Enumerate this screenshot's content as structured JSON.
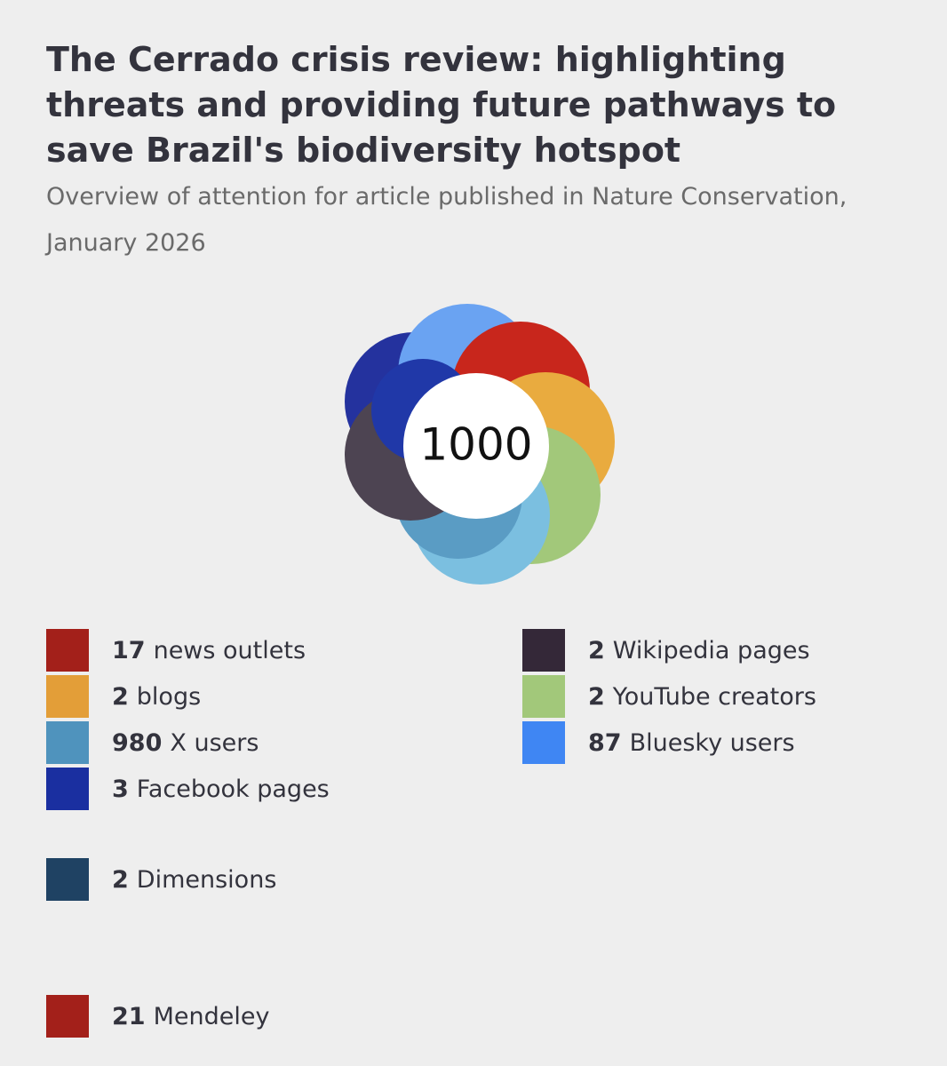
{
  "header": {
    "title": "The Cerrado crisis review: highlighting threats and providing future pathways to save Brazil's biodiversity hotspot",
    "subtitle": "Overview of attention for article published in Nature Conservation, January 2026"
  },
  "score": "1000",
  "columns": [
    [
      {
        "count": 17,
        "label": "news outlets",
        "color": "#a3201a"
      },
      {
        "count": 2,
        "label": "blogs",
        "color": "#e39e38"
      },
      {
        "count": 980,
        "label": "X users",
        "color": "#4f93bd"
      },
      {
        "count": 3,
        "label": "Facebook pages",
        "color": "#1a2fa0"
      }
    ],
    [
      {
        "count": 2,
        "label": "Wikipedia pages",
        "color": "#342838"
      },
      {
        "count": 2,
        "label": "YouTube creators",
        "color": "#a2c87a"
      },
      {
        "count": 87,
        "label": "Bluesky users",
        "color": "#3f86f3"
      }
    ]
  ],
  "other": [
    {
      "count": 2,
      "label": "Dimensions",
      "color": "#1f4263"
    },
    {
      "count": 21,
      "label": "Mendeley",
      "color": "#a3201a"
    }
  ]
}
